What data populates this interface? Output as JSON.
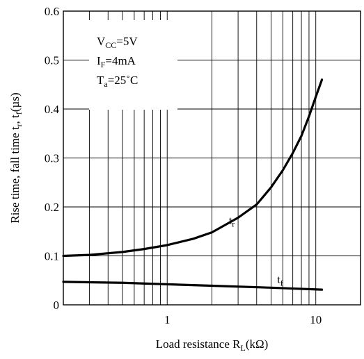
{
  "chart_data": {
    "type": "line",
    "xscale": "log",
    "xlim": [
      0.2,
      20
    ],
    "ylim": [
      0,
      0.6
    ],
    "grid": true,
    "x_ticks": [
      {
        "value": 1,
        "label": "1"
      },
      {
        "value": 10,
        "label": "10"
      }
    ],
    "y_ticks": [
      {
        "value": 0,
        "label": "0"
      },
      {
        "value": 0.1,
        "label": "0.1"
      },
      {
        "value": 0.2,
        "label": "0.2"
      },
      {
        "value": 0.3,
        "label": "0.3"
      },
      {
        "value": 0.4,
        "label": "0.4"
      },
      {
        "value": 0.5,
        "label": "0.5"
      },
      {
        "value": 0.6,
        "label": "0.6"
      }
    ],
    "xlabel": {
      "main": "Load resistance R",
      "sub": "L",
      "rest": "(kΩ)"
    },
    "ylabel": {
      "p1": "Rise time, fall time t",
      "s1": "r",
      "p2": ", t",
      "s2": "f",
      "p3": "(µs)"
    },
    "conditions": [
      {
        "main": "V",
        "sub": "CC",
        "rest": "=5V"
      },
      {
        "main": "I",
        "sub": "F",
        "rest": "=4mA"
      },
      {
        "main": "T",
        "sub": "a",
        "rest": "=25˚C"
      }
    ],
    "series": [
      {
        "name": {
          "main": "t",
          "sub": "r"
        },
        "label_at": {
          "x": 2.6,
          "y": 0.165
        },
        "x": [
          0.2,
          0.3,
          0.5,
          0.7,
          1.0,
          1.5,
          2.0,
          3.0,
          4.0,
          5.0,
          6.0,
          7.0,
          8.0,
          9.0,
          10.0,
          11.0
        ],
        "y": [
          0.1,
          0.102,
          0.108,
          0.114,
          0.122,
          0.135,
          0.148,
          0.178,
          0.205,
          0.24,
          0.275,
          0.31,
          0.345,
          0.385,
          0.425,
          0.46
        ]
      },
      {
        "name": {
          "main": "t",
          "sub": "f"
        },
        "label_at": {
          "x": 5.5,
          "y": 0.045
        },
        "x": [
          0.2,
          0.5,
          1.0,
          2.0,
          5.0,
          11.0
        ],
        "y": [
          0.047,
          0.045,
          0.042,
          0.039,
          0.035,
          0.031
        ]
      }
    ]
  }
}
